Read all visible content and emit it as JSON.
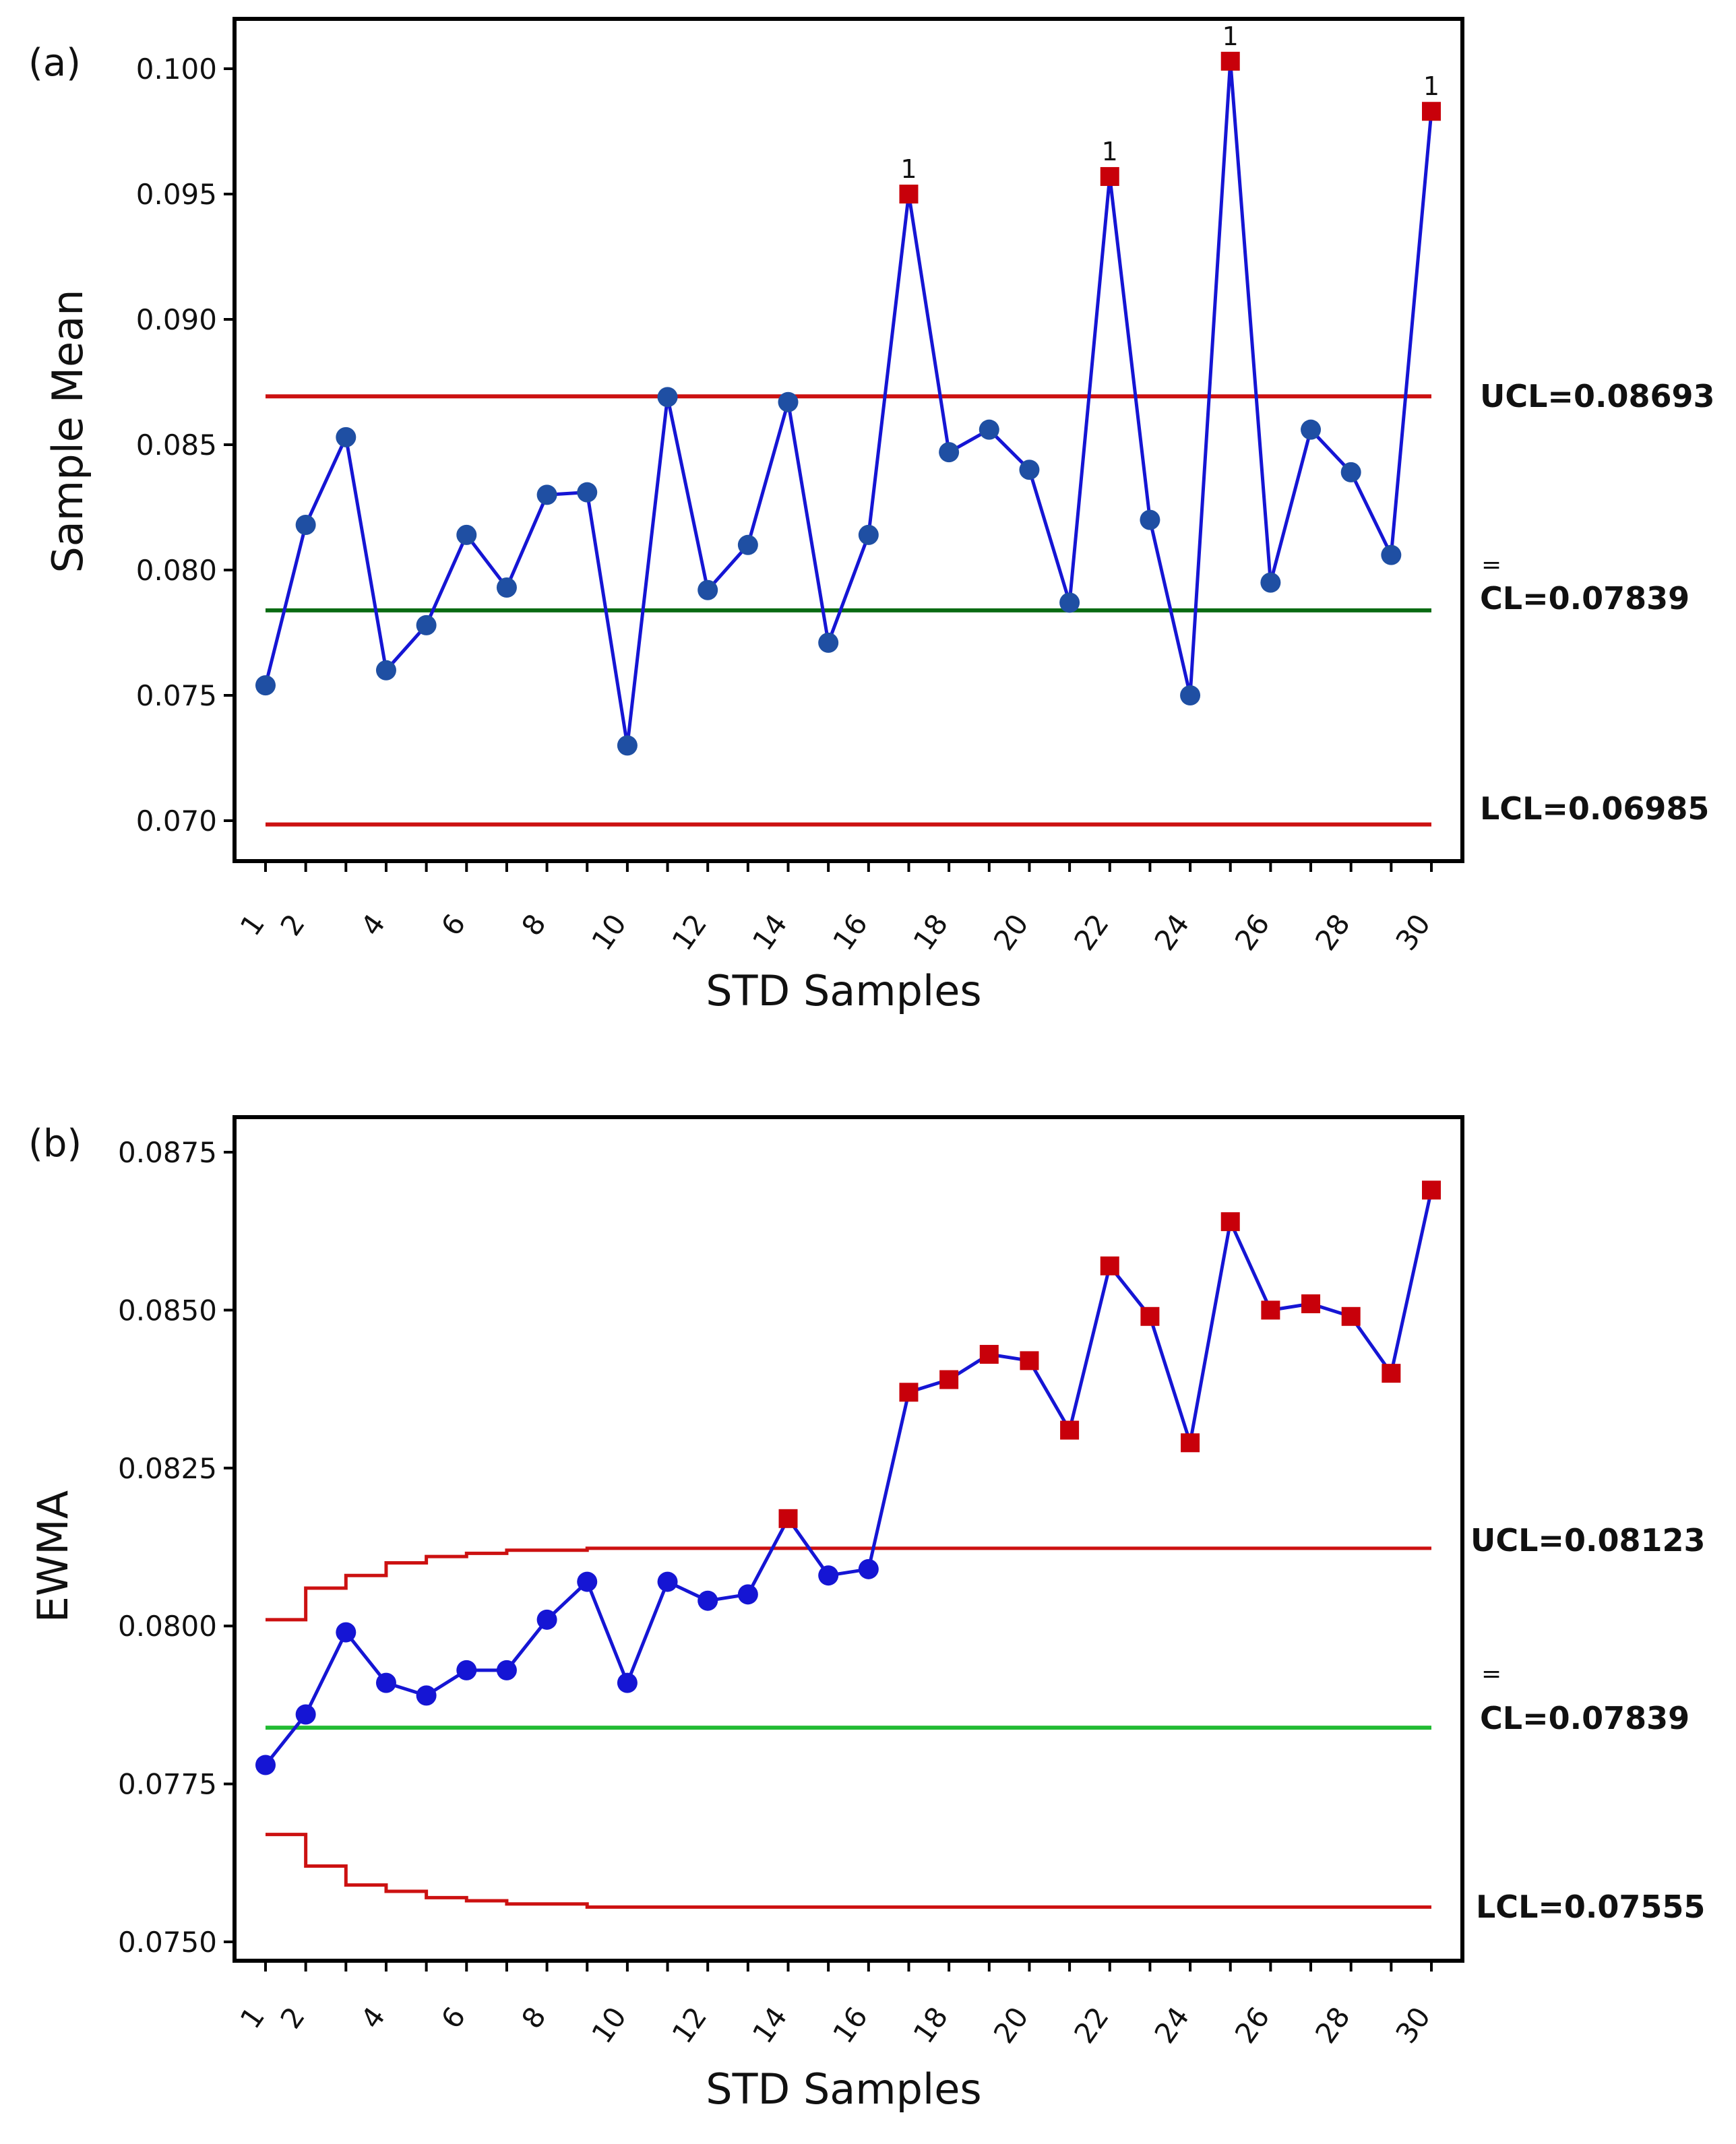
{
  "chart_data": [
    {
      "type": "line",
      "panel_label": "(a)",
      "xlabel": "STD  Samples",
      "ylabel": "Sample Mean",
      "xlim": [
        1,
        30
      ],
      "ylim": [
        0.068,
        0.1015
      ],
      "xticks": [
        1,
        2,
        4,
        6,
        8,
        10,
        12,
        14,
        16,
        18,
        20,
        22,
        24,
        26,
        28,
        30
      ],
      "yticks": [
        0.07,
        0.075,
        0.08,
        0.085,
        0.09,
        0.095,
        0.1
      ],
      "ytick_labels": [
        "0.070",
        "0.075",
        "0.080",
        "0.085",
        "0.090",
        "0.095",
        "0.100"
      ],
      "series": [
        {
          "name": "Sample Mean",
          "x": [
            1,
            2,
            3,
            4,
            5,
            6,
            7,
            8,
            9,
            10,
            11,
            12,
            13,
            14,
            15,
            16,
            17,
            18,
            19,
            20,
            21,
            22,
            23,
            24,
            25,
            26,
            27,
            28,
            29,
            30
          ],
          "values": [
            0.0754,
            0.0818,
            0.0853,
            0.076,
            0.0778,
            0.0814,
            0.0793,
            0.083,
            0.0831,
            0.073,
            0.0869,
            0.0792,
            0.081,
            0.0867,
            0.0771,
            0.0814,
            0.095,
            0.0847,
            0.0856,
            0.084,
            0.0787,
            0.0957,
            0.082,
            0.075,
            0.1003,
            0.0795,
            0.0856,
            0.0839,
            0.0806,
            0.0983
          ]
        }
      ],
      "flagged_points": [
        17,
        22,
        25,
        30
      ],
      "violation_label": "1",
      "limits": {
        "ucl": {
          "value": 0.08693,
          "label": "UCL=0.08693"
        },
        "cl": {
          "value": 0.07839,
          "label": "CL=0.07839",
          "bar": "="
        },
        "lcl": {
          "value": 0.06985,
          "label": "LCL=0.06985"
        }
      }
    },
    {
      "type": "line",
      "panel_label": "(b)",
      "xlabel": "STD  Samples",
      "ylabel": "EWMA",
      "xlim": [
        1,
        30
      ],
      "ylim": [
        0.07495,
        0.0876
      ],
      "xticks": [
        1,
        2,
        4,
        6,
        8,
        10,
        12,
        14,
        16,
        18,
        20,
        22,
        24,
        26,
        28,
        30
      ],
      "yticks": [
        0.075,
        0.0775,
        0.08,
        0.0825,
        0.085,
        0.0875
      ],
      "ytick_labels": [
        "0.0750",
        "0.0775",
        "0.0800",
        "0.0825",
        "0.0850",
        "0.0875"
      ],
      "series": [
        {
          "name": "EWMA",
          "x": [
            1,
            2,
            3,
            4,
            5,
            6,
            7,
            8,
            9,
            10,
            11,
            12,
            13,
            14,
            15,
            16,
            17,
            18,
            19,
            20,
            21,
            22,
            23,
            24,
            25,
            26,
            27,
            28,
            29,
            30
          ],
          "values": [
            0.0778,
            0.0786,
            0.0799,
            0.0791,
            0.0789,
            0.0793,
            0.0793,
            0.0801,
            0.0807,
            0.0791,
            0.0807,
            0.0804,
            0.0805,
            0.0817,
            0.0808,
            0.0809,
            0.0837,
            0.0839,
            0.0843,
            0.0842,
            0.0831,
            0.0857,
            0.0849,
            0.0829,
            0.0864,
            0.085,
            0.0851,
            0.0849,
            0.084,
            0.0869
          ]
        }
      ],
      "flagged_points": [
        14,
        17,
        18,
        19,
        20,
        21,
        22,
        23,
        24,
        25,
        26,
        27,
        28,
        29,
        30
      ],
      "limits": {
        "ucl": {
          "value": 0.08123,
          "label": "UCL=0.08123",
          "steps": [
            0.0801,
            0.0806,
            0.0808,
            0.081,
            0.0811,
            0.08115,
            0.0812,
            0.0812,
            0.08123
          ]
        },
        "cl": {
          "value": 0.07839,
          "label": "CL=0.07839",
          "bar": "="
        },
        "lcl": {
          "value": 0.07555,
          "label": "LCL=0.07555",
          "steps": [
            0.0767,
            0.0762,
            0.0759,
            0.0758,
            0.0757,
            0.07565,
            0.0756,
            0.0756,
            0.07555
          ]
        }
      }
    }
  ],
  "colors": {
    "series": "#1515d4",
    "marker": "#1f4fa3",
    "flag": "#c8000a",
    "ucl_lcl": "#cc1111",
    "cl_a": "#0a6b12",
    "cl_b": "#22bb33",
    "frame": "#000000"
  }
}
